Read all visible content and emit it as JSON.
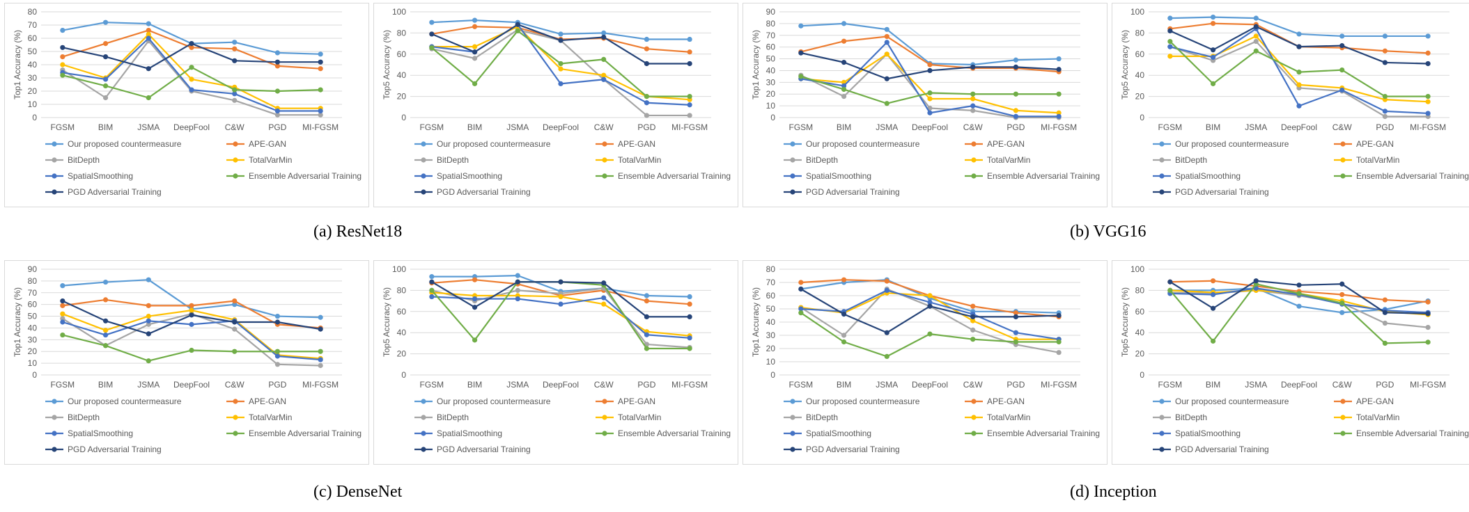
{
  "series_colors": [
    "#5b9bd5",
    "#ed7d31",
    "#a5a5a5",
    "#ffc000",
    "#4472c4",
    "#70ad47",
    "#264478"
  ],
  "captions": [
    "(a) ResNet18",
    "(b) VGG16",
    "(c) DenseNet",
    "(d) Inception"
  ],
  "chart_data": [
    {
      "type": "line",
      "ylabel": "Top1 Accuracy (%)",
      "ylim": [
        0,
        80
      ],
      "ystep": 10,
      "grid": true,
      "legend": "bottom",
      "categories": [
        "FGSM",
        "BIM",
        "JSMA",
        "DeepFool",
        "C&W",
        "PGD",
        "MI-FGSM"
      ],
      "series": [
        {
          "name": "Our proposed countermeasure",
          "values": [
            66,
            72,
            71,
            56,
            57,
            49,
            48
          ]
        },
        {
          "name": "APE-GAN",
          "values": [
            46,
            56,
            66,
            53,
            52,
            39,
            37
          ]
        },
        {
          "name": "BitDepth",
          "values": [
            36,
            15,
            58,
            20,
            13,
            2,
            2
          ]
        },
        {
          "name": "TotalVarMin",
          "values": [
            40,
            30,
            63,
            29,
            23,
            7,
            7
          ]
        },
        {
          "name": "SpatialSmoothing",
          "values": [
            34,
            29,
            60,
            21,
            18,
            5,
            5
          ]
        },
        {
          "name": "Ensemble Adversarial Training",
          "values": [
            32,
            24,
            15,
            38,
            21,
            20,
            21
          ]
        },
        {
          "name": "PGD Adversarial Training",
          "values": [
            53,
            46,
            37,
            56,
            43,
            42,
            42
          ]
        }
      ]
    },
    {
      "type": "line",
      "ylabel": "Top5 Accuracy (%)",
      "ylim": [
        0,
        100
      ],
      "ystep": 20,
      "grid": true,
      "legend": "bottom",
      "categories": [
        "FGSM",
        "BIM",
        "JSMA",
        "DeepFool",
        "C&W",
        "PGD",
        "MI-FGSM"
      ],
      "series": [
        {
          "name": "Our proposed countermeasure",
          "values": [
            90,
            92,
            90,
            79,
            80,
            74,
            74
          ]
        },
        {
          "name": "APE-GAN",
          "values": [
            79,
            86,
            85,
            74,
            75,
            65,
            62
          ]
        },
        {
          "name": "BitDepth",
          "values": [
            65,
            56,
            83,
            73,
            36,
            2,
            2
          ]
        },
        {
          "name": "TotalVarMin",
          "values": [
            67,
            67,
            86,
            46,
            40,
            20,
            17
          ]
        },
        {
          "name": "SpatialSmoothing",
          "values": [
            67,
            62,
            88,
            32,
            36,
            14,
            12
          ]
        },
        {
          "name": "Ensemble Adversarial Training",
          "values": [
            66,
            32,
            82,
            51,
            55,
            20,
            20
          ]
        },
        {
          "name": "PGD Adversarial Training",
          "values": [
            79,
            62,
            88,
            73,
            76,
            51,
            51
          ]
        }
      ]
    },
    {
      "type": "line",
      "ylabel": "Top1 Accuracy (%)",
      "ylim": [
        0,
        90
      ],
      "ystep": 10,
      "grid": true,
      "legend": "bottom",
      "categories": [
        "FGSM",
        "BIM",
        "JSMA",
        "DeepFool",
        "C&W",
        "PGD",
        "MI-FGSM"
      ],
      "series": [
        {
          "name": "Our proposed countermeasure",
          "values": [
            78,
            80,
            75,
            46,
            45,
            49,
            50
          ]
        },
        {
          "name": "APE-GAN",
          "values": [
            56,
            65,
            69,
            45,
            42,
            42,
            39
          ]
        },
        {
          "name": "BitDepth",
          "values": [
            36,
            18,
            54,
            8,
            6,
            0,
            0
          ]
        },
        {
          "name": "TotalVarMin",
          "values": [
            33,
            30,
            54,
            16,
            16,
            6,
            4
          ]
        },
        {
          "name": "SpatialSmoothing",
          "values": [
            33,
            27,
            64,
            4,
            10,
            1,
            1
          ]
        },
        {
          "name": "Ensemble Adversarial Training",
          "values": [
            35,
            24,
            12,
            21,
            20,
            20,
            20
          ]
        },
        {
          "name": "PGD Adversarial Training",
          "values": [
            55,
            47,
            33,
            40,
            43,
            43,
            41
          ]
        }
      ]
    },
    {
      "type": "line",
      "ylabel": "Top5 Accuracy (%)",
      "ylim": [
        0,
        100
      ],
      "ystep": 20,
      "grid": true,
      "legend": "bottom",
      "categories": [
        "FGSM",
        "BIM",
        "JSMA",
        "DeepFool",
        "C&W",
        "PGD",
        "MI-FGSM"
      ],
      "series": [
        {
          "name": "Our proposed countermeasure",
          "values": [
            94,
            95,
            94,
            79,
            77,
            77,
            77
          ]
        },
        {
          "name": "APE-GAN",
          "values": [
            84,
            89,
            88,
            67,
            66,
            63,
            61
          ]
        },
        {
          "name": "BitDepth",
          "values": [
            67,
            54,
            72,
            28,
            25,
            1,
            1
          ]
        },
        {
          "name": "TotalVarMin",
          "values": [
            58,
            58,
            77,
            31,
            28,
            17,
            15
          ]
        },
        {
          "name": "SpatialSmoothing",
          "values": [
            67,
            57,
            84,
            11,
            26,
            6,
            4
          ]
        },
        {
          "name": "Ensemble Adversarial Training",
          "values": [
            72,
            32,
            63,
            43,
            45,
            20,
            20
          ]
        },
        {
          "name": "PGD Adversarial Training",
          "values": [
            82,
            64,
            86,
            67,
            68,
            52,
            51
          ]
        }
      ]
    },
    {
      "type": "line",
      "ylabel": "Top1 Accuracy (%)",
      "ylim": [
        0,
        90
      ],
      "ystep": 10,
      "grid": true,
      "legend": "bottom",
      "categories": [
        "FGSM",
        "BIM",
        "JSMA",
        "DeepFool",
        "C&W",
        "PGD",
        "MI-FGSM"
      ],
      "series": [
        {
          "name": "Our proposed countermeasure",
          "values": [
            76,
            79,
            81,
            56,
            60,
            50,
            49
          ]
        },
        {
          "name": "APE-GAN",
          "values": [
            59,
            64,
            59,
            59,
            63,
            43,
            40
          ]
        },
        {
          "name": "BitDepth",
          "values": [
            48,
            25,
            43,
            52,
            39,
            9,
            8
          ]
        },
        {
          "name": "TotalVarMin",
          "values": [
            52,
            38,
            50,
            55,
            47,
            17,
            14
          ]
        },
        {
          "name": "SpatialSmoothing",
          "values": [
            45,
            34,
            46,
            43,
            46,
            16,
            13
          ]
        },
        {
          "name": "Ensemble Adversarial Training",
          "values": [
            34,
            25,
            12,
            21,
            20,
            20,
            20
          ]
        },
        {
          "name": "PGD Adversarial Training",
          "values": [
            63,
            46,
            35,
            51,
            45,
            45,
            39
          ]
        }
      ]
    },
    {
      "type": "line",
      "ylabel": "Top5 Accuracy (%)",
      "ylim": [
        0,
        100
      ],
      "ystep": 20,
      "grid": true,
      "legend": "bottom",
      "categories": [
        "FGSM",
        "BIM",
        "JSMA",
        "DeepFool",
        "C&W",
        "PGD",
        "MI-FGSM"
      ],
      "series": [
        {
          "name": "Our proposed countermeasure",
          "values": [
            93,
            93,
            94,
            79,
            82,
            75,
            74
          ]
        },
        {
          "name": "APE-GAN",
          "values": [
            87,
            90,
            86,
            75,
            80,
            70,
            67
          ]
        },
        {
          "name": "BitDepth",
          "values": [
            80,
            70,
            80,
            77,
            82,
            29,
            26
          ]
        },
        {
          "name": "TotalVarMin",
          "values": [
            78,
            75,
            75,
            74,
            67,
            41,
            37
          ]
        },
        {
          "name": "SpatialSmoothing",
          "values": [
            74,
            72,
            72,
            67,
            73,
            38,
            35
          ]
        },
        {
          "name": "Ensemble Adversarial Training",
          "values": [
            80,
            33,
            88,
            88,
            85,
            25,
            25
          ]
        },
        {
          "name": "PGD Adversarial Training",
          "values": [
            88,
            64,
            88,
            88,
            87,
            55,
            55
          ]
        }
      ]
    },
    {
      "type": "line",
      "ylabel": "Top1 Accuracy (%)",
      "ylim": [
        0,
        80
      ],
      "ystep": 10,
      "grid": true,
      "legend": "bottom",
      "categories": [
        "FGSM",
        "BIM",
        "JSMA",
        "DeepFool",
        "C&W",
        "PGD",
        "MI-FGSM"
      ],
      "series": [
        {
          "name": "Our proposed countermeasure",
          "values": [
            65,
            70,
            72,
            58,
            48,
            48,
            47
          ]
        },
        {
          "name": "APE-GAN",
          "values": [
            70,
            72,
            71,
            60,
            52,
            47,
            44
          ]
        },
        {
          "name": "BitDepth",
          "values": [
            51,
            30,
            65,
            52,
            34,
            23,
            17
          ]
        },
        {
          "name": "TotalVarMin",
          "values": [
            51,
            47,
            62,
            60,
            41,
            27,
            27
          ]
        },
        {
          "name": "SpatialSmoothing",
          "values": [
            50,
            48,
            64,
            55,
            46,
            32,
            27
          ]
        },
        {
          "name": "Ensemble Adversarial Training",
          "values": [
            47,
            25,
            14,
            31,
            27,
            25,
            25
          ]
        },
        {
          "name": "PGD Adversarial Training",
          "values": [
            65,
            46,
            32,
            52,
            44,
            44,
            45
          ]
        }
      ]
    },
    {
      "type": "line",
      "ylabel": "Top5 Accuracy (%)",
      "ylim": [
        0,
        100
      ],
      "ystep": 20,
      "grid": true,
      "legend": "bottom",
      "categories": [
        "FGSM",
        "BIM",
        "JSMA",
        "DeepFool",
        "C&W",
        "PGD",
        "MI-FGSM"
      ],
      "series": [
        {
          "name": "Our proposed countermeasure",
          "values": [
            80,
            80,
            82,
            65,
            59,
            62,
            70
          ]
        },
        {
          "name": "APE-GAN",
          "values": [
            88,
            89,
            84,
            79,
            76,
            71,
            69
          ]
        },
        {
          "name": "BitDepth",
          "values": [
            78,
            77,
            80,
            75,
            68,
            49,
            45
          ]
        },
        {
          "name": "TotalVarMin",
          "values": [
            80,
            78,
            80,
            77,
            70,
            60,
            57
          ]
        },
        {
          "name": "SpatialSmoothing",
          "values": [
            77,
            76,
            82,
            76,
            67,
            61,
            59
          ]
        },
        {
          "name": "Ensemble Adversarial Training",
          "values": [
            80,
            32,
            86,
            77,
            68,
            30,
            31
          ]
        },
        {
          "name": "PGD Adversarial Training",
          "values": [
            88,
            63,
            89,
            85,
            86,
            59,
            58
          ]
        }
      ]
    }
  ]
}
